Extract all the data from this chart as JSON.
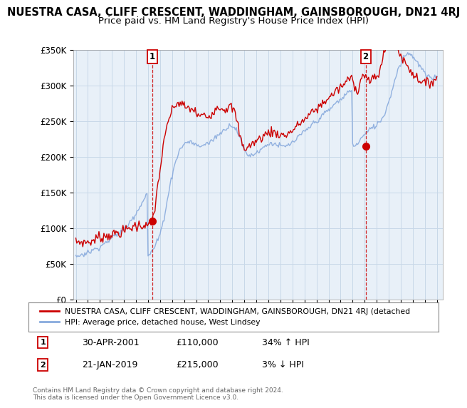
{
  "title": "NUESTRA CASA, CLIFF CRESCENT, WADDINGHAM, GAINSBOROUGH, DN21 4RJ",
  "subtitle": "Price paid vs. HM Land Registry's House Price Index (HPI)",
  "legend_label_red": "NUESTRA CASA, CLIFF CRESCENT, WADDINGHAM, GAINSBOROUGH, DN21 4RJ (detached",
  "legend_label_blue": "HPI: Average price, detached house, West Lindsey",
  "sale1_date": "30-APR-2001",
  "sale1_price": "£110,000",
  "sale1_hpi": "34% ↑ HPI",
  "sale1_year": 2001.33,
  "sale1_value": 110000,
  "sale2_date": "21-JAN-2019",
  "sale2_price": "£215,000",
  "sale2_hpi": "3% ↓ HPI",
  "sale2_year": 2019.08,
  "sale2_value": 215000,
  "ylim": [
    0,
    350000
  ],
  "xlim_start": 1994.8,
  "xlim_end": 2025.5,
  "copyright_text": "Contains HM Land Registry data © Crown copyright and database right 2024.\nThis data is licensed under the Open Government Licence v3.0.",
  "bg_color": "#ffffff",
  "plot_bg_color": "#e8f0f8",
  "grid_color": "#c8d8e8",
  "red_color": "#cc0000",
  "blue_color": "#88aadd",
  "title_fontsize": 10.5,
  "subtitle_fontsize": 9.5,
  "years": [
    1995.0,
    1995.08,
    1995.17,
    1995.25,
    1995.33,
    1995.42,
    1995.5,
    1995.58,
    1995.67,
    1995.75,
    1995.83,
    1995.92,
    1996.0,
    1996.08,
    1996.17,
    1996.25,
    1996.33,
    1996.42,
    1996.5,
    1996.58,
    1996.67,
    1996.75,
    1996.83,
    1996.92,
    1997.0,
    1997.08,
    1997.17,
    1997.25,
    1997.33,
    1997.42,
    1997.5,
    1997.58,
    1997.67,
    1997.75,
    1997.83,
    1997.92,
    1998.0,
    1998.08,
    1998.17,
    1998.25,
    1998.33,
    1998.42,
    1998.5,
    1998.58,
    1998.67,
    1998.75,
    1998.83,
    1998.92,
    1999.0,
    1999.08,
    1999.17,
    1999.25,
    1999.33,
    1999.42,
    1999.5,
    1999.58,
    1999.67,
    1999.75,
    1999.83,
    1999.92,
    2000.0,
    2000.08,
    2000.17,
    2000.25,
    2000.33,
    2000.42,
    2000.5,
    2000.58,
    2000.67,
    2000.75,
    2000.83,
    2000.92,
    2001.0,
    2001.08,
    2001.17,
    2001.25,
    2001.33,
    2001.42,
    2001.5,
    2001.58,
    2001.67,
    2001.75,
    2001.83,
    2001.92,
    2002.0,
    2002.08,
    2002.17,
    2002.25,
    2002.33,
    2002.42,
    2002.5,
    2002.58,
    2002.67,
    2002.75,
    2002.83,
    2002.92,
    2003.0,
    2003.08,
    2003.17,
    2003.25,
    2003.33,
    2003.42,
    2003.5,
    2003.58,
    2003.67,
    2003.75,
    2003.83,
    2003.92,
    2004.0,
    2004.08,
    2004.17,
    2004.25,
    2004.33,
    2004.42,
    2004.5,
    2004.58,
    2004.67,
    2004.75,
    2004.83,
    2004.92,
    2005.0,
    2005.08,
    2005.17,
    2005.25,
    2005.33,
    2005.42,
    2005.5,
    2005.58,
    2005.67,
    2005.75,
    2005.83,
    2005.92,
    2006.0,
    2006.08,
    2006.17,
    2006.25,
    2006.33,
    2006.42,
    2006.5,
    2006.58,
    2006.67,
    2006.75,
    2006.83,
    2006.92,
    2007.0,
    2007.08,
    2007.17,
    2007.25,
    2007.33,
    2007.42,
    2007.5,
    2007.58,
    2007.67,
    2007.75,
    2007.83,
    2007.92,
    2008.0,
    2008.08,
    2008.17,
    2008.25,
    2008.33,
    2008.42,
    2008.5,
    2008.58,
    2008.67,
    2008.75,
    2008.83,
    2008.92,
    2009.0,
    2009.08,
    2009.17,
    2009.25,
    2009.33,
    2009.42,
    2009.5,
    2009.58,
    2009.67,
    2009.75,
    2009.83,
    2009.92,
    2010.0,
    2010.08,
    2010.17,
    2010.25,
    2010.33,
    2010.42,
    2010.5,
    2010.58,
    2010.67,
    2010.75,
    2010.83,
    2010.92,
    2011.0,
    2011.08,
    2011.17,
    2011.25,
    2011.33,
    2011.42,
    2011.5,
    2011.58,
    2011.67,
    2011.75,
    2011.83,
    2011.92,
    2012.0,
    2012.08,
    2012.17,
    2012.25,
    2012.33,
    2012.42,
    2012.5,
    2012.58,
    2012.67,
    2012.75,
    2012.83,
    2012.92,
    2013.0,
    2013.08,
    2013.17,
    2013.25,
    2013.33,
    2013.42,
    2013.5,
    2013.58,
    2013.67,
    2013.75,
    2013.83,
    2013.92,
    2014.0,
    2014.08,
    2014.17,
    2014.25,
    2014.33,
    2014.42,
    2014.5,
    2014.58,
    2014.67,
    2014.75,
    2014.83,
    2014.92,
    2015.0,
    2015.08,
    2015.17,
    2015.25,
    2015.33,
    2015.42,
    2015.5,
    2015.58,
    2015.67,
    2015.75,
    2015.83,
    2015.92,
    2016.0,
    2016.08,
    2016.17,
    2016.25,
    2016.33,
    2016.42,
    2016.5,
    2016.58,
    2016.67,
    2016.75,
    2016.83,
    2016.92,
    2017.0,
    2017.08,
    2017.17,
    2017.25,
    2017.33,
    2017.42,
    2017.5,
    2017.58,
    2017.67,
    2017.75,
    2017.83,
    2017.92,
    2018.0,
    2018.08,
    2018.17,
    2018.25,
    2018.33,
    2018.42,
    2018.5,
    2018.58,
    2018.67,
    2018.75,
    2018.83,
    2018.92,
    2019.0,
    2019.08,
    2019.17,
    2019.25,
    2019.33,
    2019.42,
    2019.5,
    2019.58,
    2019.67,
    2019.75,
    2019.83,
    2019.92,
    2020.0,
    2020.08,
    2020.17,
    2020.25,
    2020.33,
    2020.42,
    2020.5,
    2020.58,
    2020.67,
    2020.75,
    2020.83,
    2020.92,
    2021.0,
    2021.08,
    2021.17,
    2021.25,
    2021.33,
    2021.42,
    2021.5,
    2021.58,
    2021.67,
    2021.75,
    2021.83,
    2021.92,
    2022.0,
    2022.08,
    2022.17,
    2022.25,
    2022.33,
    2022.42,
    2022.5,
    2022.58,
    2022.67,
    2022.75,
    2022.83,
    2022.92,
    2023.0,
    2023.08,
    2023.17,
    2023.25,
    2023.33,
    2023.42,
    2023.5,
    2023.58,
    2023.67,
    2023.75,
    2023.83,
    2023.92,
    2024.0,
    2024.08,
    2024.17,
    2024.25,
    2024.33,
    2024.42,
    2024.5,
    2024.58,
    2024.67,
    2024.75,
    2024.83,
    2024.92,
    2025.0
  ],
  "hpi_base": [
    60000,
    60500,
    61000,
    61500,
    62000,
    62500,
    63000,
    63500,
    64000,
    64500,
    65000,
    65500,
    66000,
    66500,
    67000,
    67500,
    68000,
    68800,
    69600,
    70400,
    71200,
    72000,
    72800,
    73600,
    74400,
    75200,
    76000,
    77000,
    78000,
    79000,
    80000,
    81000,
    82000,
    83000,
    84000,
    85000,
    86000,
    87000,
    88000,
    89000,
    90000,
    91000,
    92000,
    93000,
    94000,
    95000,
    96000,
    97000,
    98000,
    99500,
    101000,
    103000,
    105000,
    107000,
    109000,
    111000,
    113000,
    115000,
    117000,
    119000,
    121000,
    123500,
    126000,
    128500,
    131000,
    133500,
    136000,
    138500,
    141000,
    143500,
    146000,
    148500,
    60000,
    62000,
    64000,
    66000,
    68000,
    70000,
    72000,
    75000,
    78000,
    81000,
    84000,
    88000,
    92000,
    97000,
    102000,
    108000,
    115000,
    122000,
    130000,
    138000,
    146000,
    153000,
    160000,
    167000,
    174000,
    180000,
    186000,
    191000,
    196000,
    200000,
    204000,
    207000,
    210000,
    212000,
    214000,
    216000,
    218000,
    219000,
    220000,
    220500,
    221000,
    221000,
    221000,
    220500,
    220000,
    219000,
    218000,
    217000,
    216000,
    215500,
    215000,
    215000,
    215000,
    215500,
    216000,
    216500,
    217000,
    217500,
    218000,
    218500,
    219000,
    220000,
    221000,
    222000,
    223000,
    224000,
    225500,
    227000,
    228500,
    230000,
    231000,
    232000,
    233000,
    234000,
    235000,
    236000,
    237500,
    239000,
    240500,
    242000,
    243000,
    243500,
    244000,
    244000,
    244000,
    243000,
    242000,
    240000,
    238000,
    235000,
    232000,
    228000,
    224000,
    220000,
    216000,
    213000,
    210000,
    207000,
    205000,
    204000,
    203000,
    202500,
    202000,
    202000,
    202500,
    203000,
    204000,
    205000,
    206000,
    207000,
    208000,
    209000,
    210000,
    211000,
    212000,
    213000,
    214000,
    215000,
    216000,
    217000,
    218000,
    218500,
    219000,
    219000,
    219000,
    218500,
    218000,
    217500,
    217000,
    216500,
    216000,
    215500,
    215000,
    214500,
    214000,
    214000,
    214000,
    214500,
    215000,
    215500,
    216000,
    217000,
    218000,
    219000,
    220000,
    221000,
    222000,
    223000,
    224500,
    226000,
    227500,
    229000,
    230500,
    232000,
    233000,
    234000,
    235000,
    236000,
    237000,
    238500,
    240000,
    241500,
    243000,
    244500,
    246000,
    247000,
    248000,
    249000,
    250000,
    251000,
    252000,
    253500,
    255000,
    256500,
    258000,
    259500,
    261000,
    262000,
    263000,
    264000,
    265000,
    266000,
    267500,
    269000,
    270500,
    272000,
    273500,
    275000,
    276000,
    277000,
    278000,
    279000,
    280000,
    281000,
    282500,
    284000,
    285500,
    287000,
    288500,
    290000,
    291000,
    292000,
    293000,
    294000,
    221000,
    215000,
    213000,
    215000,
    217000,
    219000,
    221000,
    223000,
    225000,
    226500,
    228000,
    229500,
    231000,
    232500,
    234000,
    235500,
    237000,
    238000,
    239000,
    240000,
    241000,
    242000,
    243000,
    244000,
    245000,
    246500,
    248000,
    249500,
    251000,
    253000,
    255000,
    258000,
    261000,
    265000,
    269000,
    273000,
    277000,
    282000,
    287000,
    292000,
    297000,
    302000,
    307000,
    312000,
    317000,
    321000,
    325000,
    329000,
    332000,
    335000,
    338000,
    340000,
    342000,
    343000,
    344000,
    344500,
    345000,
    345000,
    344000,
    343000,
    341000,
    339000,
    337000,
    335000,
    333000,
    331000,
    329000,
    327000,
    325000,
    323000,
    321000,
    319000,
    317000,
    315000,
    313000,
    312000,
    311000,
    310500,
    310000,
    310000,
    310500,
    311000,
    312000,
    313000,
    314000
  ],
  "red_base": [
    80000,
    80500,
    81000,
    80500,
    80000,
    80500,
    81000,
    80000,
    79500,
    80000,
    80500,
    81000,
    80500,
    80000,
    80500,
    81000,
    81500,
    82000,
    83000,
    84000,
    85000,
    86000,
    87000,
    88000,
    87000,
    86000,
    87000,
    88000,
    89000,
    90000,
    89000,
    88000,
    89000,
    90000,
    91000,
    92000,
    91000,
    90000,
    91000,
    92000,
    93000,
    94000,
    93000,
    92000,
    93000,
    94000,
    95000,
    96000,
    95000,
    96000,
    97000,
    98000,
    99000,
    100000,
    99000,
    100000,
    101000,
    102000,
    103000,
    104000,
    103000,
    102000,
    103000,
    104000,
    105000,
    104000,
    103000,
    104000,
    105000,
    104000,
    103000,
    104000,
    104000,
    103000,
    104000,
    105000,
    110000,
    116000,
    122000,
    130000,
    140000,
    152000,
    163000,
    172000,
    182000,
    192000,
    202000,
    212000,
    220000,
    228000,
    236000,
    243000,
    249000,
    254000,
    258000,
    261000,
    264000,
    267000,
    270000,
    272000,
    273000,
    274000,
    275000,
    275500,
    275000,
    274000,
    273000,
    272000,
    271000,
    270000,
    269000,
    268000,
    267500,
    267000,
    267000,
    267000,
    267000,
    266500,
    265000,
    263000,
    261000,
    259000,
    258000,
    257000,
    257000,
    257000,
    257500,
    258000,
    258000,
    257500,
    257000,
    256500,
    256000,
    257000,
    258000,
    260000,
    262000,
    264000,
    266000,
    267000,
    268000,
    269000,
    269500,
    270000,
    270000,
    269000,
    268000,
    267500,
    267000,
    267000,
    268000,
    269000,
    270000,
    270500,
    270000,
    269000,
    268000,
    266000,
    263000,
    259000,
    254000,
    248000,
    241000,
    234000,
    228000,
    222000,
    218000,
    215000,
    213000,
    212000,
    212000,
    213000,
    214000,
    215000,
    216000,
    217000,
    218000,
    219000,
    220000,
    221000,
    222000,
    223000,
    224000,
    225000,
    226000,
    227000,
    228000,
    229000,
    230000,
    231000,
    232000,
    233000,
    234000,
    234500,
    235000,
    235000,
    235000,
    234500,
    234000,
    233500,
    233000,
    232500,
    232000,
    231500,
    231000,
    230500,
    230000,
    230000,
    230000,
    230500,
    231000,
    232000,
    233000,
    234000,
    235000,
    236000,
    237000,
    238000,
    239000,
    240500,
    242000,
    243500,
    245000,
    246500,
    248000,
    249000,
    250000,
    251000,
    252000,
    253000,
    254000,
    255500,
    257000,
    258500,
    260000,
    261500,
    263000,
    264000,
    265000,
    266000,
    267000,
    268000,
    269000,
    270500,
    272000,
    273500,
    275000,
    276500,
    278000,
    279000,
    280000,
    281000,
    282000,
    283000,
    284500,
    286000,
    287500,
    289000,
    290500,
    292000,
    293000,
    294000,
    295000,
    296000,
    297000,
    298000,
    299500,
    301000,
    302500,
    304000,
    305500,
    307000,
    308000,
    309000,
    310000,
    311000,
    310000,
    305000,
    300000,
    295000,
    292000,
    295000,
    298000,
    302000,
    306000,
    310000,
    314000,
    318000,
    315000,
    312000,
    310000,
    308000,
    307000,
    306000,
    306000,
    307000,
    308000,
    309000,
    310000,
    311000,
    312000,
    314000,
    317000,
    320000,
    325000,
    330000,
    337000,
    344000,
    351000,
    356000,
    361000,
    365000,
    368000,
    370000,
    371000,
    371000,
    370000,
    368000,
    365000,
    361000,
    357000,
    353000,
    349000,
    345000,
    342000,
    339000,
    337000,
    335000,
    333000,
    331000,
    329000,
    327000,
    325000,
    323000,
    321000,
    319000,
    317000,
    315000,
    313000,
    312000,
    311000,
    310000,
    309000,
    308000,
    307000,
    306000,
    305000,
    304000,
    303000,
    302000,
    302000,
    302500,
    303000,
    304000,
    305000,
    306000,
    307000,
    308000,
    309000,
    310000,
    310000
  ]
}
